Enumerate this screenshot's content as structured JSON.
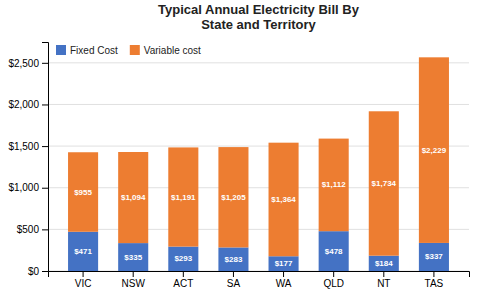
{
  "chart_data": {
    "type": "bar",
    "title": "Typical Annual Electricity Bill By\nState and Territory",
    "categories": [
      "VIC",
      "NSW",
      "ACT",
      "SA",
      "WA",
      "QLD",
      "NT",
      "TAS"
    ],
    "series": [
      {
        "name": "Fixed Cost",
        "color": "#4472c4",
        "values": [
          471,
          335,
          293,
          283,
          177,
          478,
          184,
          337
        ],
        "value_labels": [
          "$471",
          "$335",
          "$293",
          "$283",
          "$177",
          "$478",
          "$184",
          "$337"
        ]
      },
      {
        "name": "Variable cost",
        "color": "#ed7d31",
        "values": [
          955,
          1094,
          1191,
          1205,
          1364,
          1112,
          1734,
          2229
        ],
        "value_labels": [
          "$955",
          "$1,094",
          "$1,191",
          "$1,205",
          "$1,364",
          "$1,112",
          "$1,734",
          "$2,229"
        ]
      }
    ],
    "stacked": true,
    "data_labels": true,
    "ylim": [
      0,
      2750
    ],
    "yticks": [
      {
        "value": 0,
        "label": "$0"
      },
      {
        "value": 500,
        "label": "$500"
      },
      {
        "value": 1000,
        "label": "$1,000"
      },
      {
        "value": 1500,
        "label": "$1,500"
      },
      {
        "value": 2000,
        "label": "$2,000"
      },
      {
        "value": 2500,
        "label": "$2,500"
      }
    ],
    "grid": true,
    "legend": "upper-left"
  }
}
